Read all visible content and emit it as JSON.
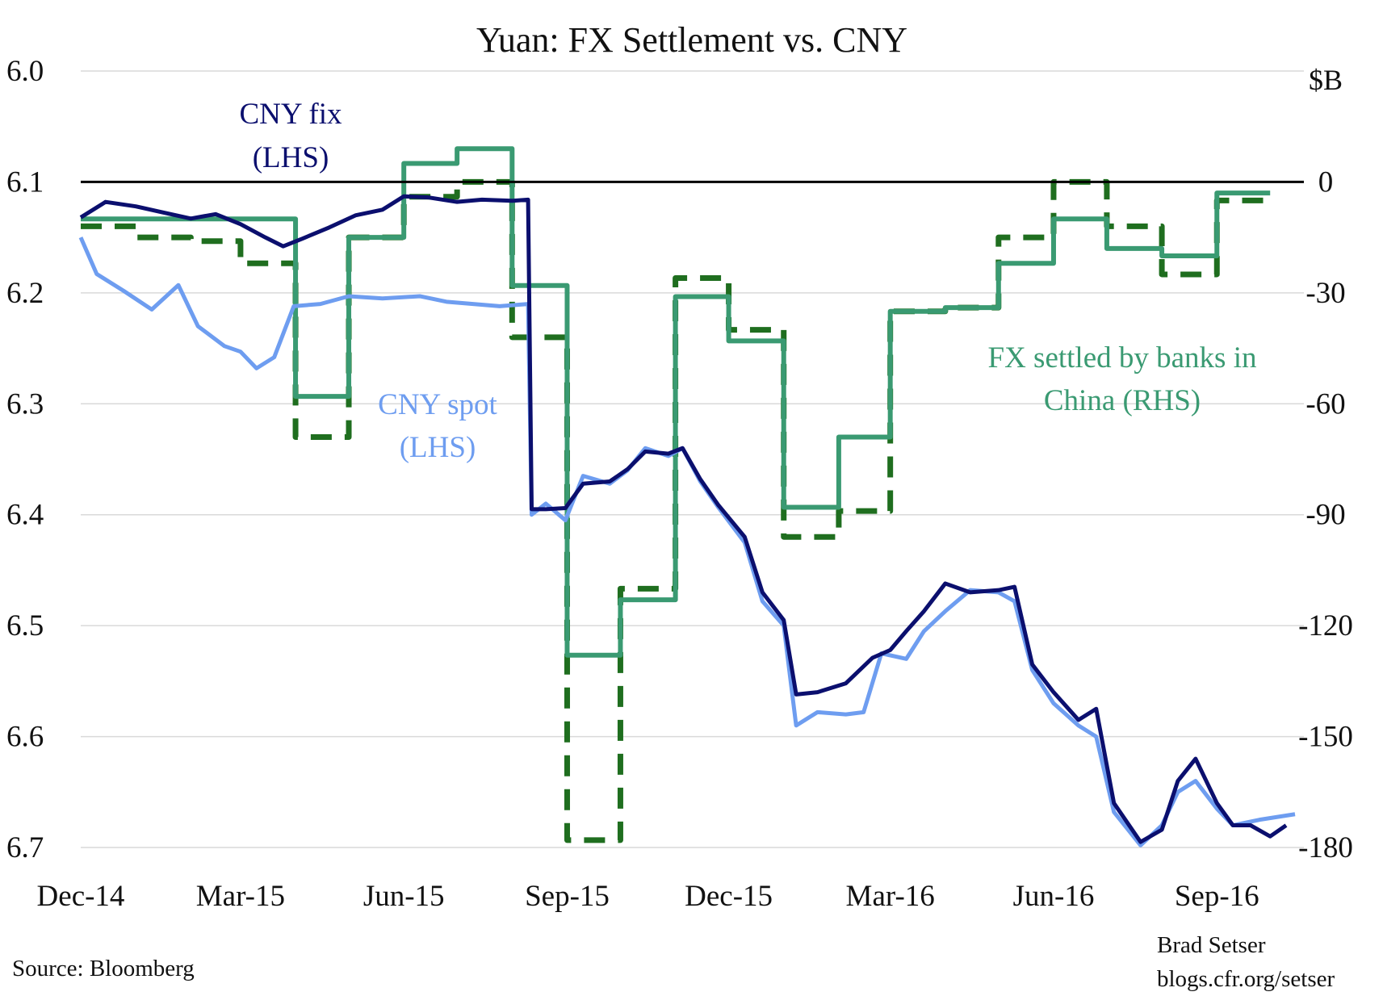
{
  "chart_data": {
    "type": "line",
    "title": "Yuan: FX Settlement vs. CNY",
    "y_left": {
      "ticks": [
        "6.0",
        "6.1",
        "6.2",
        "6.3",
        "6.4",
        "6.5",
        "6.6",
        "6.7"
      ],
      "range": [
        6.0,
        6.7
      ],
      "inverted": true
    },
    "y_right": {
      "unit_label": "$B",
      "ticks": [
        "0",
        "-30",
        "-60",
        "-90",
        "-120",
        "-150",
        "-180"
      ],
      "range": [
        30,
        -180
      ]
    },
    "x_ticks": [
      "Dec-14",
      "Mar-15",
      "Jun-15",
      "Sep-15",
      "Dec-15",
      "Mar-16",
      "Jun-16",
      "Sep-16"
    ],
    "x_range": [
      "2014-12-01",
      "2016-10-20"
    ],
    "zero_line": 0,
    "grid": true,
    "annotations": {
      "cny_fix": [
        "CNY fix",
        "(LHS)"
      ],
      "cny_spot": [
        "CNY spot",
        "(LHS)"
      ],
      "fx_settled": [
        "FX settled by banks in",
        "China (RHS)"
      ]
    },
    "colors": {
      "cny_fix": "#0b0f6e",
      "cny_spot": "#6e9df0",
      "fx_settled": "#3a9a72",
      "fx_settled_dashed": "#1f6e1f"
    },
    "series": [
      {
        "name": "CNY fix",
        "axis": "left",
        "style": "line",
        "points": [
          [
            "2014-12-01",
            6.132
          ],
          [
            "2014-12-15",
            6.118
          ],
          [
            "2015-01-01",
            6.122
          ],
          [
            "2015-01-15",
            6.127
          ],
          [
            "2015-02-01",
            6.133
          ],
          [
            "2015-02-15",
            6.129
          ],
          [
            "2015-03-01",
            6.138
          ],
          [
            "2015-03-15",
            6.15
          ],
          [
            "2015-03-25",
            6.158
          ],
          [
            "2015-04-05",
            6.151
          ],
          [
            "2015-04-20",
            6.141
          ],
          [
            "2015-05-05",
            6.13
          ],
          [
            "2015-05-20",
            6.125
          ],
          [
            "2015-06-01",
            6.113
          ],
          [
            "2015-06-15",
            6.114
          ],
          [
            "2015-07-01",
            6.118
          ],
          [
            "2015-07-15",
            6.116
          ],
          [
            "2015-08-01",
            6.117
          ],
          [
            "2015-08-10",
            6.116
          ],
          [
            "2015-08-12",
            6.395
          ],
          [
            "2015-08-20",
            6.395
          ],
          [
            "2015-08-31",
            6.394
          ],
          [
            "2015-09-10",
            6.372
          ],
          [
            "2015-09-25",
            6.37
          ],
          [
            "2015-10-05",
            6.359
          ],
          [
            "2015-10-15",
            6.343
          ],
          [
            "2015-10-28",
            6.345
          ],
          [
            "2015-11-05",
            6.34
          ],
          [
            "2015-11-15",
            6.368
          ],
          [
            "2015-11-25",
            6.391
          ],
          [
            "2015-12-10",
            6.42
          ],
          [
            "2015-12-20",
            6.47
          ],
          [
            "2016-01-01",
            6.495
          ],
          [
            "2016-01-08",
            6.562
          ],
          [
            "2016-01-20",
            6.56
          ],
          [
            "2016-02-05",
            6.552
          ],
          [
            "2016-02-20",
            6.529
          ],
          [
            "2016-03-01",
            6.522
          ],
          [
            "2016-03-10",
            6.505
          ],
          [
            "2016-03-20",
            6.487
          ],
          [
            "2016-04-01",
            6.462
          ],
          [
            "2016-04-15",
            6.47
          ],
          [
            "2016-05-01",
            6.468
          ],
          [
            "2016-05-10",
            6.465
          ],
          [
            "2016-05-20",
            6.535
          ],
          [
            "2016-06-01",
            6.56
          ],
          [
            "2016-06-15",
            6.585
          ],
          [
            "2016-06-25",
            6.575
          ],
          [
            "2016-07-05",
            6.66
          ],
          [
            "2016-07-20",
            6.695
          ],
          [
            "2016-08-01",
            6.684
          ],
          [
            "2016-08-10",
            6.64
          ],
          [
            "2016-08-20",
            6.62
          ],
          [
            "2016-09-01",
            6.66
          ],
          [
            "2016-09-10",
            6.68
          ],
          [
            "2016-09-20",
            6.68
          ],
          [
            "2016-10-01",
            6.69
          ],
          [
            "2016-10-10",
            6.68
          ]
        ]
      },
      {
        "name": "CNY spot",
        "axis": "left",
        "style": "line",
        "points": [
          [
            "2014-12-01",
            6.15
          ],
          [
            "2014-12-10",
            6.183
          ],
          [
            "2014-12-25",
            6.198
          ],
          [
            "2015-01-10",
            6.215
          ],
          [
            "2015-01-25",
            6.193
          ],
          [
            "2015-02-05",
            6.23
          ],
          [
            "2015-02-20",
            6.248
          ],
          [
            "2015-03-01",
            6.253
          ],
          [
            "2015-03-10",
            6.268
          ],
          [
            "2015-03-20",
            6.258
          ],
          [
            "2015-03-31",
            6.212
          ],
          [
            "2015-04-15",
            6.21
          ],
          [
            "2015-05-01",
            6.203
          ],
          [
            "2015-05-20",
            6.205
          ],
          [
            "2015-06-10",
            6.203
          ],
          [
            "2015-06-25",
            6.208
          ],
          [
            "2015-07-10",
            6.21
          ],
          [
            "2015-07-25",
            6.212
          ],
          [
            "2015-08-10",
            6.21
          ],
          [
            "2015-08-12",
            6.4
          ],
          [
            "2015-08-20",
            6.39
          ],
          [
            "2015-08-31",
            6.405
          ],
          [
            "2015-09-10",
            6.365
          ],
          [
            "2015-09-25",
            6.372
          ],
          [
            "2015-10-05",
            6.36
          ],
          [
            "2015-10-15",
            6.34
          ],
          [
            "2015-10-28",
            6.347
          ],
          [
            "2015-11-05",
            6.34
          ],
          [
            "2015-11-15",
            6.37
          ],
          [
            "2015-11-25",
            6.393
          ],
          [
            "2015-12-10",
            6.425
          ],
          [
            "2015-12-20",
            6.478
          ],
          [
            "2016-01-01",
            6.5
          ],
          [
            "2016-01-08",
            6.59
          ],
          [
            "2016-01-20",
            6.578
          ],
          [
            "2016-02-05",
            6.58
          ],
          [
            "2016-02-15",
            6.578
          ],
          [
            "2016-02-25",
            6.525
          ],
          [
            "2016-03-10",
            6.53
          ],
          [
            "2016-03-20",
            6.505
          ],
          [
            "2016-04-01",
            6.487
          ],
          [
            "2016-04-15",
            6.468
          ],
          [
            "2016-05-01",
            6.47
          ],
          [
            "2016-05-10",
            6.478
          ],
          [
            "2016-05-20",
            6.54
          ],
          [
            "2016-06-01",
            6.57
          ],
          [
            "2016-06-15",
            6.59
          ],
          [
            "2016-06-25",
            6.6
          ],
          [
            "2016-07-05",
            6.668
          ],
          [
            "2016-07-20",
            6.698
          ],
          [
            "2016-08-01",
            6.68
          ],
          [
            "2016-08-10",
            6.65
          ],
          [
            "2016-08-20",
            6.64
          ],
          [
            "2016-09-01",
            6.665
          ],
          [
            "2016-09-10",
            6.68
          ],
          [
            "2016-09-25",
            6.675
          ],
          [
            "2016-10-15",
            6.67
          ]
        ]
      },
      {
        "name": "FX settled by banks in China",
        "axis": "right",
        "style": "step",
        "points": [
          [
            "2014-12-01",
            -10
          ],
          [
            "2015-03-01",
            -10
          ],
          [
            "2015-04-01",
            -58
          ],
          [
            "2015-05-01",
            -15
          ],
          [
            "2015-06-01",
            5
          ],
          [
            "2015-07-01",
            9
          ],
          [
            "2015-08-01",
            -28
          ],
          [
            "2015-09-01",
            -128
          ],
          [
            "2015-10-01",
            -113
          ],
          [
            "2015-11-01",
            -31
          ],
          [
            "2015-12-01",
            -43
          ],
          [
            "2016-01-01",
            -88
          ],
          [
            "2016-02-01",
            -69
          ],
          [
            "2016-03-01",
            -35
          ],
          [
            "2016-04-01",
            -34
          ],
          [
            "2016-05-01",
            -22
          ],
          [
            "2016-06-01",
            -10
          ],
          [
            "2016-07-01",
            -18
          ],
          [
            "2016-08-01",
            -20
          ],
          [
            "2016-09-01",
            -3
          ]
        ]
      },
      {
        "name": "FX settled by banks in China (dashed)",
        "axis": "right",
        "style": "step-dashed",
        "points": [
          [
            "2014-12-01",
            -12
          ],
          [
            "2015-01-01",
            -15
          ],
          [
            "2015-02-01",
            -16
          ],
          [
            "2015-03-01",
            -22
          ],
          [
            "2015-04-01",
            -69
          ],
          [
            "2015-05-01",
            -15
          ],
          [
            "2015-06-01",
            -4
          ],
          [
            "2015-07-01",
            0
          ],
          [
            "2015-08-01",
            -42
          ],
          [
            "2015-09-01",
            -178
          ],
          [
            "2015-10-01",
            -110
          ],
          [
            "2015-11-01",
            -26
          ],
          [
            "2015-12-01",
            -40
          ],
          [
            "2016-01-01",
            -96
          ],
          [
            "2016-02-01",
            -89
          ],
          [
            "2016-03-01",
            -35
          ],
          [
            "2016-04-01",
            -34
          ],
          [
            "2016-05-01",
            -15
          ],
          [
            "2016-06-01",
            0
          ],
          [
            "2016-07-01",
            -12
          ],
          [
            "2016-08-01",
            -25
          ],
          [
            "2016-09-01",
            -5
          ]
        ]
      }
    ]
  },
  "footer": {
    "source": "Source: Bloomberg",
    "author": "Brad Setser",
    "url": "blogs.cfr.org/setser"
  }
}
